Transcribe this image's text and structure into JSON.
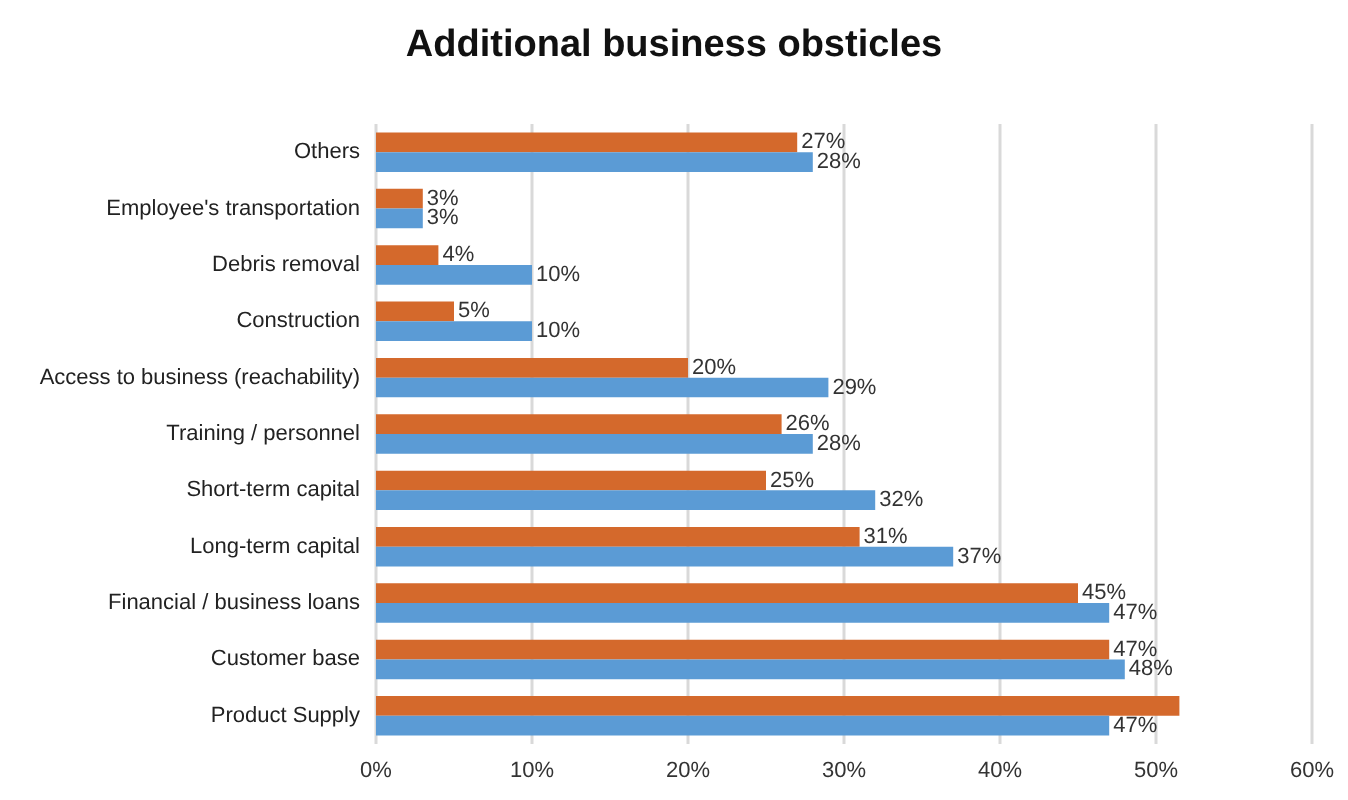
{
  "chart_data": {
    "type": "bar",
    "orientation": "horizontal",
    "title": "Additional business obsticles",
    "categories": [
      "Others",
      "Employee's transportation",
      "Debris removal",
      "Construction",
      "Access to business (reachability)",
      "Training / personnel",
      "Short-term capital",
      "Long-term capital",
      "Financial / business loans",
      "Customer base",
      "Product Supply"
    ],
    "series": [
      {
        "color": "#d4692c",
        "values": [
          27,
          3,
          4,
          5,
          20,
          26,
          25,
          31,
          45,
          47,
          51.5
        ],
        "value_labels": [
          "27%",
          "3%",
          "4%",
          "5%",
          "20%",
          "26%",
          "25%",
          "31%",
          "45%",
          "47%",
          null
        ]
      },
      {
        "color": "#5b9bd5",
        "values": [
          28,
          3,
          10,
          10,
          29,
          28,
          32,
          37,
          47,
          48,
          47
        ],
        "value_labels": [
          "28%",
          "3%",
          "10%",
          "10%",
          "29%",
          "28%",
          "32%",
          "37%",
          "47%",
          "48%",
          "47%"
        ]
      }
    ],
    "xlim": [
      0,
      60
    ],
    "xticks": [
      {
        "value": 0,
        "label": "0%"
      },
      {
        "value": 10,
        "label": "10%"
      },
      {
        "value": 20,
        "label": "20%"
      },
      {
        "value": 30,
        "label": "30%"
      },
      {
        "value": 40,
        "label": "40%"
      },
      {
        "value": 50,
        "label": "50%"
      },
      {
        "value": 60,
        "label": "60%"
      }
    ],
    "grid": "x"
  }
}
